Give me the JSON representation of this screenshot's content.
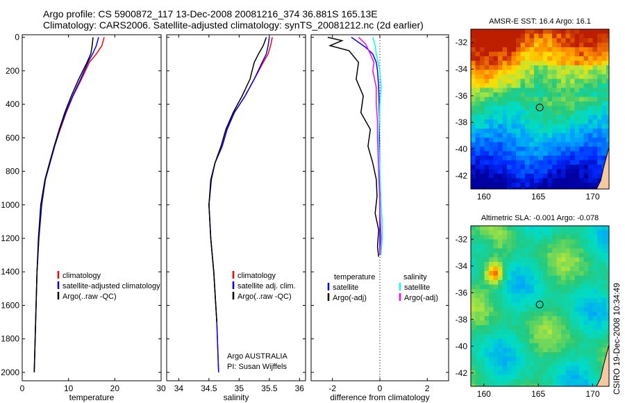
{
  "header": {
    "line1": "Argo profile: CS 5900872_117 13-Dec-2008 20081216_374 36.881S 165.13E",
    "line2": "Climatology: CARS2006. Satellite-adjusted climatology: synTS_20081212.nc (2d earlier)"
  },
  "side_text": "CSIRO 19-Dec-2008 10:34:49",
  "colors": {
    "climatology": "#ff0000",
    "satellite": "#0000ff",
    "argo": "#000000",
    "salinity_satellite": "#00ffff",
    "salinity_argo": "#ff00ff"
  },
  "chart_data": [
    {
      "type": "line",
      "panel": "temperature",
      "xlabel": "temperature",
      "ylabel": "",
      "xlim": [
        0,
        30
      ],
      "ylim": [
        2050,
        0
      ],
      "xticks": [
        "0",
        "10",
        "20",
        "30"
      ],
      "yticks": [
        "0",
        "200",
        "400",
        "600",
        "800",
        "1000",
        "1200",
        "1400",
        "1600",
        "1800",
        "2000"
      ],
      "legend": [
        "climatology",
        "satellite-adjusted climatology",
        "Argo(..raw -QC)"
      ],
      "series": [
        {
          "name": "climatology",
          "color": "#ff0000",
          "x": [
            17.7,
            17.2,
            16.0,
            14.5,
            12.8,
            11.0,
            9.5,
            8.2,
            7.0,
            6.0,
            5.0,
            4.2,
            3.6,
            3.2,
            2.9,
            2.6
          ],
          "y": [
            0,
            50,
            100,
            150,
            250,
            350,
            450,
            550,
            650,
            750,
            850,
            1000,
            1200,
            1400,
            1700,
            2000
          ]
        },
        {
          "name": "satellite-adjusted climatology",
          "color": "#0000ff",
          "x": [
            16.5,
            16.0,
            15.2,
            14.2,
            12.6,
            10.9,
            9.4,
            8.1,
            7.0,
            6.0,
            5.0,
            4.2,
            3.6,
            3.2,
            2.9,
            2.6
          ],
          "y": [
            0,
            50,
            100,
            150,
            250,
            350,
            450,
            550,
            650,
            750,
            850,
            1000,
            1200,
            1400,
            1700,
            2000
          ]
        },
        {
          "name": "Argo(..raw -QC)",
          "color": "#000000",
          "x": [
            15.3,
            15.1,
            14.8,
            14.0,
            12.2,
            10.6,
            9.2,
            8.0,
            6.9,
            5.9,
            4.9,
            4.0,
            3.5,
            3.2,
            2.9,
            2.6
          ],
          "y": [
            0,
            50,
            100,
            150,
            250,
            350,
            450,
            550,
            650,
            750,
            850,
            1000,
            1200,
            1400,
            1700,
            2000
          ]
        }
      ]
    },
    {
      "type": "line",
      "panel": "salinity",
      "xlabel": "salinity",
      "ylabel": "",
      "xlim": [
        33.8,
        36.1
      ],
      "ylim": [
        2050,
        0
      ],
      "xticks": [
        "34",
        "34.5",
        "35",
        "35.5",
        "36"
      ],
      "legend": [
        "climatology",
        "satellite adj. clim.",
        "Argo(..raw -QC)"
      ],
      "annotation": [
        "Argo AUSTRALIA",
        "PI: Susan Wijffels"
      ],
      "series": [
        {
          "name": "climatology",
          "color": "#ff0000",
          "x": [
            35.55,
            35.52,
            35.48,
            35.4,
            35.25,
            35.1,
            34.92,
            34.8,
            34.72,
            34.6,
            34.54,
            34.5,
            34.53,
            34.58,
            34.63,
            34.66
          ],
          "y": [
            0,
            50,
            100,
            150,
            250,
            350,
            450,
            550,
            650,
            750,
            850,
            1000,
            1200,
            1400,
            1700,
            2000
          ]
        },
        {
          "name": "satellite adj. clim.",
          "color": "#0000ff",
          "x": [
            35.5,
            35.48,
            35.45,
            35.38,
            35.25,
            35.1,
            34.92,
            34.8,
            34.72,
            34.6,
            34.54,
            34.5,
            34.53,
            34.58,
            34.63,
            34.66
          ],
          "y": [
            0,
            50,
            100,
            150,
            250,
            350,
            450,
            550,
            650,
            750,
            850,
            1000,
            1200,
            1400,
            1700,
            2000
          ]
        },
        {
          "name": "Argo(..raw -QC)",
          "color": "#000000",
          "x": [
            35.45,
            35.4,
            35.32,
            35.25,
            35.18,
            35.05,
            34.9,
            34.78,
            34.7,
            34.6,
            34.53,
            34.5,
            34.53,
            34.58,
            34.63
          ],
          "y": [
            0,
            50,
            100,
            150,
            250,
            350,
            450,
            550,
            650,
            750,
            850,
            1000,
            1200,
            1400,
            1700
          ]
        }
      ]
    },
    {
      "type": "line",
      "panel": "difference",
      "xlabel": "difference from climatology",
      "ylabel": "",
      "xlim": [
        -2.9,
        2.9
      ],
      "ylim": [
        2050,
        0
      ],
      "xticks": [
        "-2",
        "0",
        "2"
      ],
      "legend_left_title": "temperature",
      "legend_right_title": "salinity",
      "legend": [
        "satellite",
        "Argo(-adj)",
        "satellite",
        "Argo(-adj)"
      ],
      "series": [
        {
          "name": "satellite",
          "group": "temperature",
          "color": "#0000ff",
          "x": [
            -1.2,
            -0.9,
            -0.6,
            -0.3,
            -0.15,
            -0.1,
            -0.05,
            -0.03,
            -0.02,
            -0.01,
            0.0,
            0.0,
            0.0
          ],
          "y": [
            0,
            30,
            60,
            100,
            150,
            200,
            300,
            400,
            600,
            800,
            1000,
            1200,
            1300
          ]
        },
        {
          "name": "Argo(-adj)",
          "group": "temperature",
          "color": "#000000",
          "x": [
            -2.2,
            -1.6,
            -2.1,
            -1.3,
            -0.9,
            -1.0,
            -0.7,
            -0.8,
            -0.6,
            -0.4,
            -0.5,
            -0.3,
            -0.15,
            -0.12,
            -0.2,
            -0.05,
            -0.1,
            -0.05
          ],
          "y": [
            0,
            20,
            50,
            80,
            150,
            250,
            350,
            450,
            500,
            550,
            650,
            750,
            850,
            950,
            1050,
            1150,
            1250,
            1310
          ]
        },
        {
          "name": "satellite",
          "group": "salinity",
          "color": "#00ffff",
          "x": [
            -0.3,
            -0.2,
            -0.15,
            0.0,
            0.05,
            0.0,
            -0.05,
            0.0,
            0.05,
            0.1,
            0.1,
            0.05
          ],
          "y": [
            0,
            50,
            100,
            200,
            300,
            400,
            600,
            800,
            1000,
            1100,
            1200,
            1300
          ]
        },
        {
          "name": "Argo(-adj)",
          "group": "salinity",
          "color": "#ff00ff",
          "x": [
            -0.9,
            -0.6,
            -0.4,
            -0.25,
            -0.3,
            -0.15,
            -0.15,
            -0.1,
            -0.1,
            -0.05,
            0.0,
            0.05,
            0.0
          ],
          "y": [
            0,
            40,
            100,
            150,
            200,
            300,
            400,
            500,
            600,
            800,
            1000,
            1200,
            1300
          ]
        }
      ]
    },
    {
      "type": "heatmap",
      "panel": "sst_map",
      "title": "AMSR-E SST: 16.4 Argo: 16.1",
      "xlim": [
        158.8,
        171.5
      ],
      "ylim": [
        -43,
        -31
      ],
      "xticks": [
        "160",
        "165",
        "170"
      ],
      "yticks": [
        "-32",
        "-34",
        "-36",
        "-38",
        "-40",
        "-42"
      ],
      "float_position": {
        "lon": 165.13,
        "lat": -36.881
      }
    },
    {
      "type": "heatmap",
      "panel": "sla_map",
      "title": "Altimetric SLA: -0.001 Argo: -0.078",
      "xlim": [
        158.8,
        171.5
      ],
      "ylim": [
        -43,
        -31
      ],
      "xticks": [
        "160",
        "165",
        "170"
      ],
      "yticks": [
        "-32",
        "-34",
        "-36",
        "-38",
        "-40",
        "-42"
      ],
      "float_position": {
        "lon": 165.13,
        "lat": -36.881
      }
    }
  ]
}
